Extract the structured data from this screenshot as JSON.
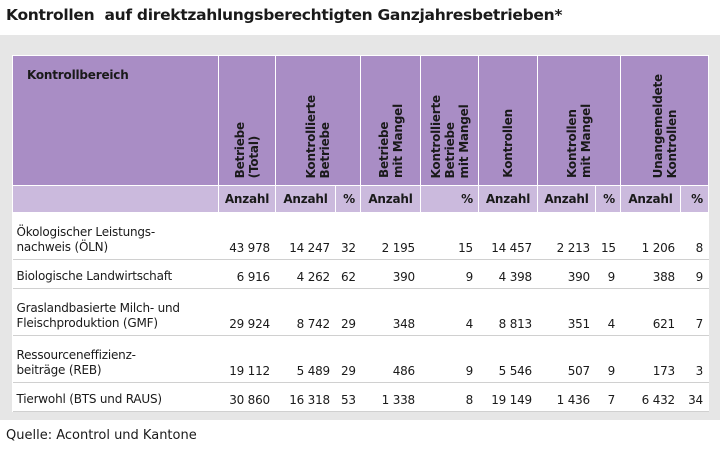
{
  "title": "Kontrollen  auf direktzahlungsberechtigten Ganzjahresbetrieben*",
  "table": {
    "first_header": "Kontrollbereich",
    "headers": [
      {
        "lines": [
          "Betriebe",
          "(Total)"
        ],
        "span": 1
      },
      {
        "lines": [
          "Kontrollierte",
          "Betriebe"
        ],
        "span": 2
      },
      {
        "lines": [
          "Betriebe",
          "mit Mangel"
        ],
        "span": 1
      },
      {
        "lines": [
          "Kontrollierte",
          "Betriebe",
          "mit Mangel"
        ],
        "span": 1
      },
      {
        "lines": [
          "Kontrollen"
        ],
        "span": 1
      },
      {
        "lines": [
          "Kontrollen",
          "mit Mangel"
        ],
        "span": 2
      },
      {
        "lines": [
          "Unangemeldete",
          "Kontrollen"
        ],
        "span": 2
      }
    ],
    "subheaders": [
      "Anzahl",
      "Anzahl",
      "%",
      "Anzahl",
      "%",
      "Anzahl",
      "Anzahl",
      "%",
      "Anzahl",
      "%"
    ],
    "rows": [
      {
        "label": [
          "Ökologischer Leistungs-",
          "nachweis (ÖLN)"
        ],
        "values": [
          "43 978",
          "14 247",
          "32",
          "2 195",
          "15",
          "14 457",
          "2 213",
          "15",
          "1 206",
          "8"
        ]
      },
      {
        "label": [
          "Biologische Landwirtschaft"
        ],
        "values": [
          "6 916",
          "4 262",
          "62",
          "390",
          "9",
          "4 398",
          "390",
          "9",
          "388",
          "9"
        ]
      },
      {
        "label": [
          "Graslandbasierte Milch- und",
          "Fleischproduktion (GMF)"
        ],
        "values": [
          "29 924",
          "8 742",
          "29",
          "348",
          "4",
          "8 813",
          "351",
          "4",
          "621",
          "7"
        ]
      },
      {
        "label": [
          "Ressourceneffizienz-",
          "beiträge (REB)"
        ],
        "values": [
          "19 112",
          "5 489",
          "29",
          "486",
          "9",
          "5 546",
          "507",
          "9",
          "173",
          "3"
        ]
      },
      {
        "label": [
          "Tierwohl (BTS und RAUS)"
        ],
        "values": [
          "30 860",
          "16 318",
          "53",
          "1 338",
          "8",
          "19 149",
          "1 436",
          "7",
          "6 432",
          "34"
        ]
      }
    ]
  },
  "source": "Quelle: Acontrol und Kantone"
}
